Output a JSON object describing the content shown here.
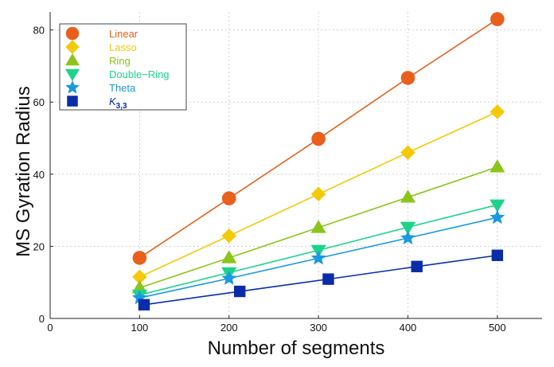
{
  "chart_data": {
    "type": "line",
    "xlabel": "Number of segments",
    "ylabel": "MS Gyration Radius",
    "xlim": [
      0,
      550
    ],
    "ylim": [
      0,
      85
    ],
    "xticks": [
      0,
      100,
      200,
      300,
      400,
      500
    ],
    "yticks": [
      0,
      20,
      40,
      60,
      80
    ],
    "grid": true,
    "legend_position": "top-left",
    "series": [
      {
        "name": "Linear",
        "color": "#e8601c",
        "marker": "circle",
        "x": [
          100,
          200,
          300,
          400,
          500
        ],
        "y": [
          16.8,
          33.3,
          49.8,
          66.7,
          83.0
        ]
      },
      {
        "name": "Lasso",
        "color": "#f4c90a",
        "marker": "diamond",
        "x": [
          100,
          200,
          300,
          400,
          500
        ],
        "y": [
          11.5,
          22.9,
          34.5,
          46.0,
          57.3
        ]
      },
      {
        "name": "Ring",
        "color": "#8cc41a",
        "marker": "triangle-up",
        "x": [
          100,
          200,
          300,
          400,
          500
        ],
        "y": [
          8.5,
          16.8,
          25.2,
          33.6,
          42.0
        ]
      },
      {
        "name": "Double−Ring",
        "color": "#1dd38a",
        "marker": "triangle-down",
        "x": [
          100,
          200,
          300,
          400,
          500
        ],
        "y": [
          6.5,
          12.7,
          18.9,
          25.3,
          31.5
        ]
      },
      {
        "name": "Theta",
        "color": "#1a98e0",
        "marker": "star",
        "x": [
          100,
          200,
          300,
          400,
          500
        ],
        "y": [
          5.7,
          11.1,
          16.7,
          22.3,
          28.0
        ]
      },
      {
        "name": "K",
        "name_subscript": "3,3",
        "color": "#0a2ca8",
        "marker": "square",
        "x": [
          105,
          212,
          311,
          410,
          500
        ],
        "y": [
          3.8,
          7.5,
          10.9,
          14.4,
          17.5
        ]
      }
    ]
  }
}
